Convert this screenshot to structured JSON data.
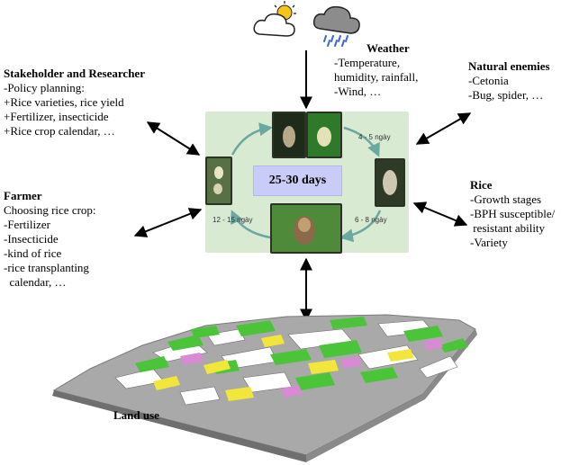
{
  "colors": {
    "lifecycle_bg": "#d9ead3",
    "days_box": "#c9ccf6",
    "map_green": "#4cc43a",
    "map_yellow": "#f2e63a",
    "map_pink": "#d88bd2",
    "map_gray": "#a5a5a5"
  },
  "icons": [
    "sun-cloud-icon",
    "rain-cloud-icon"
  ],
  "center": {
    "cycle_label": "25-30 days",
    "stage_labels": [
      "4 - 5 ngày",
      "6 - 8 ngày",
      "12 - 15 ngày"
    ]
  },
  "weather": {
    "title": "Weather",
    "lines": [
      "-Temperature,",
      "humidity, rainfall,",
      "-Wind, …"
    ]
  },
  "natural_enemies": {
    "title": "Natural enemies",
    "lines": [
      "-Cetonia",
      "-Bug, spider, …"
    ]
  },
  "stakeholder": {
    "title": "Stakeholder and Researcher",
    "lines": [
      "-Policy planning:",
      "+Rice varieties, rice yield",
      "+Fertilizer, insecticide",
      "+Rice crop calendar, …"
    ]
  },
  "farmer": {
    "title": "Farmer",
    "lines": [
      "Choosing rice crop:",
      "-Fertilizer",
      "-Insecticide",
      "-kind of rice",
      "-rice transplanting",
      "  calendar, …"
    ]
  },
  "rice": {
    "title": "Rice",
    "lines": [
      "-Growth stages",
      "-BPH susceptible/",
      " resistant ability",
      "-Variety"
    ]
  },
  "land_use": {
    "label": "Land use"
  }
}
